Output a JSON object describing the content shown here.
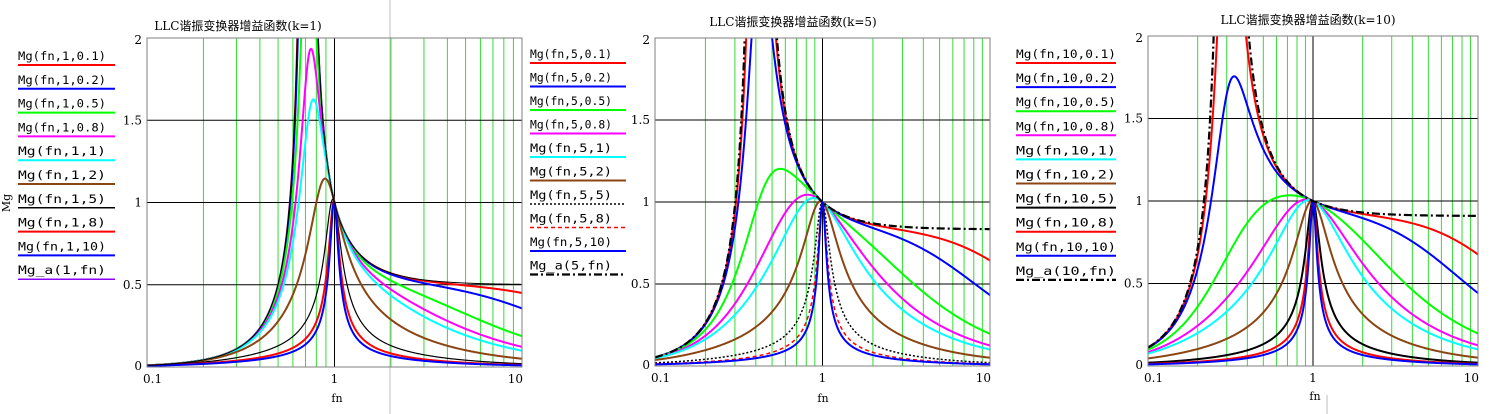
{
  "colors": {
    "grid_log": "#33dd33",
    "grid_lin": "#000000",
    "frame": "#7f7f7f"
  },
  "chart_data": [
    {
      "type": "line",
      "title": "LLC谐振变换器增益函数(k=1)",
      "xlabel": "fn",
      "ylabel": "Mg",
      "x_scale": "log",
      "xlim": [
        0.1,
        10
      ],
      "ylim": [
        0,
        2
      ],
      "x_tick_labels": [
        "0.1",
        "1",
        "10"
      ],
      "y_tick_labels": [
        "0",
        "0.5",
        "1",
        "1.5",
        "2"
      ],
      "grid": true,
      "legend_position": "left",
      "k": 1,
      "series": [
        {
          "name": "Mg(fn,1,0.1)",
          "color": "#ff0000",
          "dash": "",
          "width": 2,
          "q": 0.1
        },
        {
          "name": "Mg(fn,1,0.2)",
          "color": "#0000ff",
          "dash": "",
          "width": 2,
          "q": 0.2
        },
        {
          "name": "Mg(fn,1,0.5)",
          "color": "#00ff00",
          "dash": "",
          "width": 2,
          "q": 0.5
        },
        {
          "name": "Mg(fn,1,0.8)",
          "color": "#ff00ff",
          "dash": "",
          "width": 2,
          "q": 0.8
        },
        {
          "name": "Mg(fn,1,1)",
          "color": "#00ffff",
          "dash": "",
          "width": 2,
          "q": 1
        },
        {
          "name": "Mg(fn,1,2)",
          "color": "#8b4513",
          "dash": "",
          "width": 2,
          "q": 2
        },
        {
          "name": "Mg(fn,1,5)",
          "color": "#000000",
          "dash": "",
          "width": 1.2,
          "q": 5
        },
        {
          "name": "Mg(fn,1,8)",
          "color": "#ff0000",
          "dash": "",
          "width": 2,
          "q": 8
        },
        {
          "name": "Mg(fn,1,10)",
          "color": "#0000ff",
          "dash": "",
          "width": 2,
          "q": 10
        },
        {
          "name": "Mg_a(1,fn)",
          "color": "#000000",
          "dash": "",
          "width": 1,
          "q": 0,
          "legend_color": "#8b00ff"
        }
      ]
    },
    {
      "type": "line",
      "title": "LLC谐振变换器增益函数(k=5)",
      "xlabel": "fn",
      "ylabel": "",
      "x_scale": "log",
      "xlim": [
        0.1,
        10
      ],
      "ylim": [
        0,
        2
      ],
      "x_tick_labels": [
        "0.1",
        "1",
        "10"
      ],
      "y_tick_labels": [
        "0",
        "0.5",
        "1",
        "1.5",
        "2"
      ],
      "grid": true,
      "legend_position": "left",
      "k": 5,
      "series": [
        {
          "name": "Mg(fn,5,0.1)",
          "color": "#ff0000",
          "dash": "",
          "width": 2,
          "q": 0.1
        },
        {
          "name": "Mg(fn,5,0.2)",
          "color": "#0000ff",
          "dash": "",
          "width": 2,
          "q": 0.2
        },
        {
          "name": "Mg(fn,5,0.5)",
          "color": "#00ff00",
          "dash": "",
          "width": 2,
          "q": 0.5
        },
        {
          "name": "Mg(fn,5,0.8)",
          "color": "#ff00ff",
          "dash": "",
          "width": 2,
          "q": 0.8
        },
        {
          "name": "Mg(fn,5,1)",
          "color": "#00ffff",
          "dash": "",
          "width": 2,
          "q": 1
        },
        {
          "name": "Mg(fn,5,2)",
          "color": "#8b4513",
          "dash": "",
          "width": 2,
          "q": 2
        },
        {
          "name": "Mg(fn,5,5)",
          "color": "#000000",
          "dash": "2,2",
          "width": 1.5,
          "q": 5
        },
        {
          "name": "Mg(fn,5,8)",
          "color": "#ff0000",
          "dash": "4,3",
          "width": 1.5,
          "q": 8
        },
        {
          "name": "Mg(fn,5,10)",
          "color": "#0000ff",
          "dash": "",
          "width": 2,
          "q": 10
        },
        {
          "name": "Mg_a(5,fn)",
          "color": "#000000",
          "dash": "8,3,2,3",
          "width": 2.2,
          "q": 0
        }
      ]
    },
    {
      "type": "line",
      "title": "LLC谐振变换器增益函数(k=10)",
      "xlabel": "fn",
      "ylabel": "",
      "x_scale": "log",
      "xlim": [
        0.1,
        10
      ],
      "ylim": [
        0,
        2
      ],
      "x_tick_labels": [
        "0.1",
        "1",
        "10"
      ],
      "y_tick_labels": [
        "0",
        "0.5",
        "1",
        "1.5",
        "2"
      ],
      "grid": true,
      "legend_position": "left",
      "k": 10,
      "series": [
        {
          "name": "Mg(fn,10,0.1)",
          "color": "#ff0000",
          "dash": "",
          "width": 2,
          "q": 0.1
        },
        {
          "name": "Mg(fn,10,0.2)",
          "color": "#0000ff",
          "dash": "",
          "width": 2,
          "q": 0.2
        },
        {
          "name": "Mg(fn,10,0.5)",
          "color": "#00ff00",
          "dash": "",
          "width": 2,
          "q": 0.5
        },
        {
          "name": "Mg(fn,10,0.8)",
          "color": "#ff00ff",
          "dash": "",
          "width": 2,
          "q": 0.8
        },
        {
          "name": "Mg(fn,10,1)",
          "color": "#00ffff",
          "dash": "",
          "width": 2,
          "q": 1
        },
        {
          "name": "Mg(fn,10,2)",
          "color": "#8b4513",
          "dash": "",
          "width": 2,
          "q": 2
        },
        {
          "name": "Mg(fn,10,5)",
          "color": "#000000",
          "dash": "",
          "width": 2,
          "q": 5
        },
        {
          "name": "Mg(fn,10,8)",
          "color": "#ff0000",
          "dash": "",
          "width": 2,
          "q": 8
        },
        {
          "name": "Mg(fn,10,10)",
          "color": "#0000ff",
          "dash": "",
          "width": 2,
          "q": 10
        },
        {
          "name": "Mg_a(10,fn)",
          "color": "#000000",
          "dash": "8,3,2,3",
          "width": 2.2,
          "q": 0
        }
      ]
    }
  ]
}
